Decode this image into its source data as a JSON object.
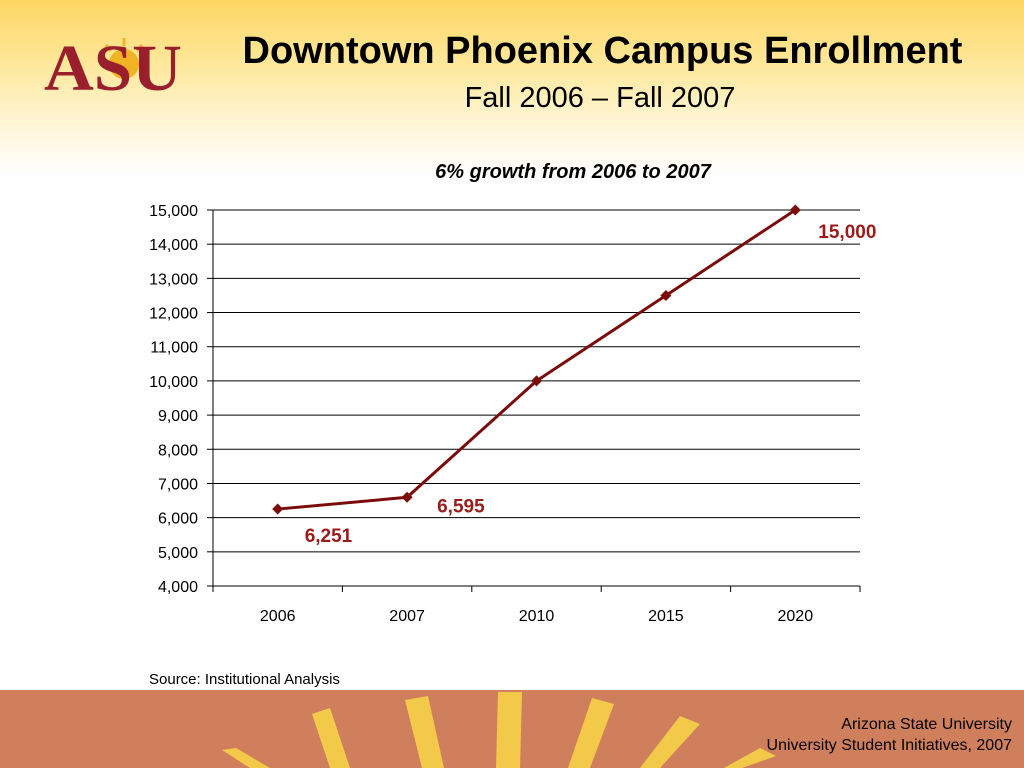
{
  "slide": {
    "title": "Downtown Phoenix Campus Enrollment",
    "subtitle": "Fall 2006 – Fall 2007",
    "logo_text": "ASU",
    "source": "Source:  Institutional Analysis",
    "footer_line1": "Arizona State University",
    "footer_line2": "University Student Initiatives, 2007"
  },
  "colors": {
    "series": "#7b0c0c",
    "label": "#9b1b1b",
    "logo": "#9a1f2d",
    "sun": "#f0b323",
    "footer": "#d07f5d"
  },
  "chart_data": {
    "type": "line",
    "title": "6% growth from 2006 to 2007",
    "categories": [
      "2006",
      "2007",
      "2010",
      "2015",
      "2020"
    ],
    "series": [
      {
        "values": [
          6251,
          6595,
          10000,
          12500,
          15000
        ]
      }
    ],
    "data_labels": [
      {
        "index": 0,
        "text": "6,251"
      },
      {
        "index": 1,
        "text": "6,595"
      },
      {
        "index": 4,
        "text": "15,000"
      }
    ],
    "ylim": [
      4000,
      15000
    ],
    "ytick_step": 1000,
    "ytick_labels": [
      "4,000",
      "5,000",
      "6,000",
      "7,000",
      "8,000",
      "9,000",
      "10,000",
      "11,000",
      "12,000",
      "13,000",
      "14,000",
      "15,000"
    ],
    "grid": true,
    "legend": "none",
    "xlabel": "",
    "ylabel": ""
  }
}
